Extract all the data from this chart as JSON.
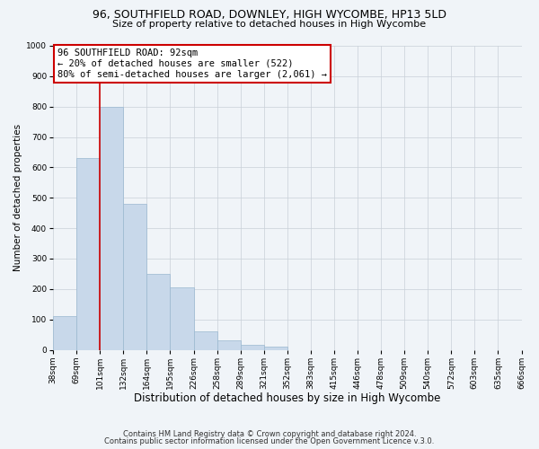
{
  "title1": "96, SOUTHFIELD ROAD, DOWNLEY, HIGH WYCOMBE, HP13 5LD",
  "title2": "Size of property relative to detached houses in High Wycombe",
  "xlabel": "Distribution of detached houses by size in High Wycombe",
  "ylabel": "Number of detached properties",
  "bar_values": [
    110,
    630,
    800,
    480,
    250,
    205,
    60,
    30,
    15,
    10,
    0,
    0,
    0,
    0,
    0,
    0,
    0,
    0,
    0,
    0
  ],
  "bin_labels": [
    "38sqm",
    "69sqm",
    "101sqm",
    "132sqm",
    "164sqm",
    "195sqm",
    "226sqm",
    "258sqm",
    "289sqm",
    "321sqm",
    "352sqm",
    "383sqm",
    "415sqm",
    "446sqm",
    "478sqm",
    "509sqm",
    "540sqm",
    "572sqm",
    "603sqm",
    "635sqm",
    "666sqm"
  ],
  "bar_color": "#c8d8ea",
  "bar_edge_color": "#9ab8d0",
  "vline_x_index": 2,
  "vline_color": "#cc0000",
  "annotation_text_line1": "96 SOUTHFIELD ROAD: 92sqm",
  "annotation_text_line2": "← 20% of detached houses are smaller (522)",
  "annotation_text_line3": "80% of semi-detached houses are larger (2,061) →",
  "box_edge_color": "#cc0000",
  "ylim": [
    0,
    1000
  ],
  "yticks": [
    0,
    100,
    200,
    300,
    400,
    500,
    600,
    700,
    800,
    900,
    1000
  ],
  "footnote1": "Contains HM Land Registry data © Crown copyright and database right 2024.",
  "footnote2": "Contains public sector information licensed under the Open Government Licence v.3.0.",
  "bg_color": "#f0f4f8",
  "title1_fontsize": 9,
  "title2_fontsize": 8,
  "xlabel_fontsize": 8.5,
  "ylabel_fontsize": 7.5,
  "tick_fontsize": 6.5,
  "annot_fontsize": 7.5,
  "footnote_fontsize": 6
}
